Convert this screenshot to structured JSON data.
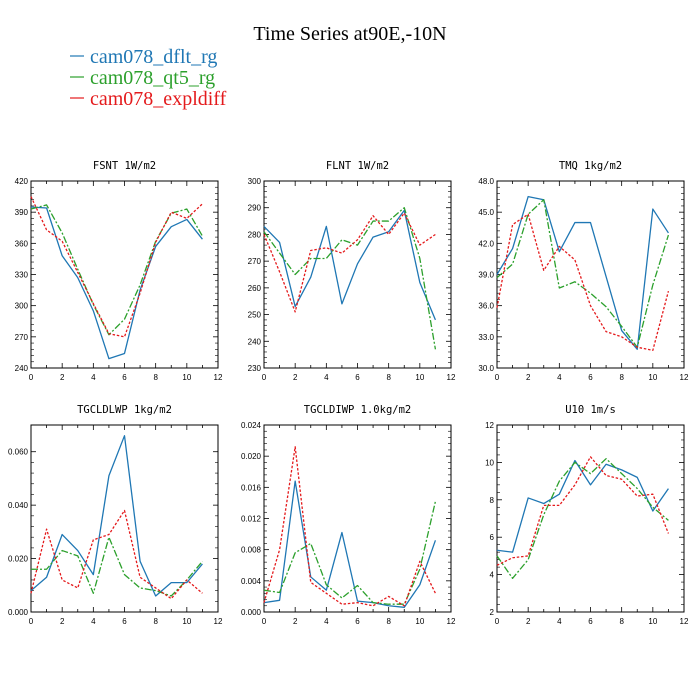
{
  "figure": {
    "title": "Time Series at90E,-10N"
  },
  "legend": {
    "entries": [
      {
        "name": "cam078_dflt_rg",
        "color": "#1f77b4",
        "style": "solid"
      },
      {
        "name": "cam078_qt5_rg",
        "color": "#2ca02c",
        "style": "dashdot"
      },
      {
        "name": "cam078_expldiff",
        "color": "#e41a1c",
        "style": "dotted"
      }
    ]
  },
  "chart_data": [
    {
      "type": "line",
      "title": "FSNT  1W/m2",
      "xlim": [
        0,
        12
      ],
      "ylim": [
        240,
        420
      ],
      "xticks": [
        0,
        2,
        4,
        6,
        8,
        10,
        12
      ],
      "yticks": [
        240,
        270,
        300,
        330,
        360,
        390,
        420
      ],
      "ytick_labels": [
        "240",
        "270",
        "300",
        "330",
        "360",
        "390",
        "420"
      ],
      "x": [
        0,
        1,
        2,
        3,
        4,
        5,
        6,
        7,
        8,
        9,
        10,
        11
      ],
      "series": [
        {
          "name": "cam078_dflt_rg",
          "values": [
            395,
            394,
            348,
            327,
            295,
            249,
            254,
            315,
            357,
            376,
            383,
            364
          ]
        },
        {
          "name": "cam078_qt5_rg",
          "values": [
            393,
            397,
            370,
            335,
            301,
            272,
            287,
            320,
            362,
            389,
            393,
            367
          ]
        },
        {
          "name": "cam078_expldiff",
          "values": [
            405,
            373,
            362,
            332,
            302,
            273,
            270,
            312,
            361,
            390,
            384,
            398
          ]
        }
      ]
    },
    {
      "type": "line",
      "title": "FLNT  1W/m2",
      "xlim": [
        0,
        12
      ],
      "ylim": [
        230,
        300
      ],
      "xticks": [
        0,
        2,
        4,
        6,
        8,
        10,
        12
      ],
      "yticks": [
        230,
        240,
        250,
        260,
        270,
        280,
        290,
        300
      ],
      "ytick_labels": [
        "230",
        "240",
        "250",
        "260",
        "270",
        "280",
        "290",
        "300"
      ],
      "x": [
        0,
        1,
        2,
        3,
        4,
        5,
        6,
        7,
        8,
        9,
        10,
        11
      ],
      "series": [
        {
          "name": "cam078_dflt_rg",
          "values": [
            283,
            277,
            253,
            264,
            283,
            254,
            269,
            279,
            281,
            289,
            262,
            248
          ]
        },
        {
          "name": "cam078_qt5_rg",
          "values": [
            281,
            273,
            265,
            271,
            271,
            278,
            276,
            285,
            285,
            290,
            271,
            237
          ]
        },
        {
          "name": "cam078_expldiff",
          "values": [
            280,
            266,
            251,
            274,
            275,
            273,
            278,
            287,
            280,
            288,
            276,
            280
          ]
        }
      ]
    },
    {
      "type": "line",
      "title": "TMQ  1kg/m2",
      "xlim": [
        0,
        12
      ],
      "ylim": [
        30,
        48
      ],
      "xticks": [
        0,
        2,
        4,
        6,
        8,
        10,
        12
      ],
      "yticks": [
        30,
        33,
        36,
        39,
        42,
        45,
        48
      ],
      "ytick_labels": [
        "30.0",
        "33.0",
        "36.0",
        "39.0",
        "42.0",
        "45.0",
        "48.0"
      ],
      "x": [
        0,
        1,
        2,
        3,
        4,
        5,
        6,
        7,
        8,
        9,
        10,
        11
      ],
      "series": [
        {
          "name": "cam078_dflt_rg",
          "values": [
            39.0,
            41.5,
            46.5,
            46.2,
            41.2,
            44.0,
            44.0,
            38.8,
            33.6,
            31.8,
            45.3,
            43.0
          ]
        },
        {
          "name": "cam078_qt5_rg",
          "values": [
            38.7,
            40.0,
            44.8,
            46.2,
            37.7,
            38.3,
            37.2,
            35.9,
            34.0,
            32.0,
            38.0,
            42.8
          ]
        },
        {
          "name": "cam078_expldiff",
          "values": [
            35.8,
            43.8,
            44.8,
            39.4,
            41.7,
            40.4,
            36.0,
            33.5,
            33.0,
            32.0,
            31.7,
            37.4
          ]
        }
      ]
    },
    {
      "type": "line",
      "title": "TGCLDLWP  1kg/m2",
      "xlim": [
        0,
        12
      ],
      "ylim": [
        0,
        0.07
      ],
      "xticks": [
        0,
        2,
        4,
        6,
        8,
        10,
        12
      ],
      "yticks": [
        0,
        0.02,
        0.04,
        0.06
      ],
      "ytick_labels": [
        "0.000",
        "0.020",
        "0.040",
        "0.060"
      ],
      "x": [
        0,
        1,
        2,
        3,
        4,
        5,
        6,
        7,
        8,
        9,
        10,
        11
      ],
      "series": [
        {
          "name": "cam078_dflt_rg",
          "values": [
            0.008,
            0.013,
            0.029,
            0.023,
            0.014,
            0.051,
            0.066,
            0.019,
            0.006,
            0.011,
            0.011,
            0.018
          ]
        },
        {
          "name": "cam078_qt5_rg",
          "values": [
            0.016,
            0.016,
            0.023,
            0.021,
            0.007,
            0.028,
            0.014,
            0.009,
            0.008,
            0.006,
            0.012,
            0.019
          ]
        },
        {
          "name": "cam078_expldiff",
          "values": [
            0.007,
            0.031,
            0.012,
            0.009,
            0.027,
            0.029,
            0.038,
            0.013,
            0.009,
            0.005,
            0.012,
            0.007
          ]
        }
      ]
    },
    {
      "type": "line",
      "title": "TGCLDIWP  1.0kg/m2",
      "xlim": [
        0,
        12
      ],
      "ylim": [
        0,
        0.024
      ],
      "xticks": [
        0,
        2,
        4,
        6,
        8,
        10,
        12
      ],
      "yticks": [
        0,
        0.004,
        0.008,
        0.012,
        0.016,
        0.02,
        0.024
      ],
      "ytick_labels": [
        "0.000",
        "0.004",
        "0.008",
        "0.012",
        "0.016",
        "0.020",
        "0.024"
      ],
      "x": [
        0,
        1,
        2,
        3,
        4,
        5,
        6,
        7,
        8,
        9,
        10,
        11
      ],
      "series": [
        {
          "name": "cam078_dflt_rg",
          "values": [
            0.0012,
            0.0015,
            0.0168,
            0.0045,
            0.0028,
            0.0102,
            0.0014,
            0.0012,
            0.0008,
            0.0006,
            0.0035,
            0.0092
          ]
        },
        {
          "name": "cam078_qt5_rg",
          "values": [
            0.0028,
            0.0025,
            0.0076,
            0.0088,
            0.0035,
            0.0018,
            0.0034,
            0.0012,
            0.001,
            0.001,
            0.0055,
            0.0142
          ]
        },
        {
          "name": "cam078_expldiff",
          "values": [
            0.0012,
            0.008,
            0.0212,
            0.0038,
            0.0024,
            0.001,
            0.0012,
            0.0008,
            0.002,
            0.0008,
            0.0065,
            0.0024
          ]
        }
      ]
    },
    {
      "type": "line",
      "title": "U10  1m/s",
      "xlim": [
        0,
        12
      ],
      "ylim": [
        2,
        12
      ],
      "xticks": [
        0,
        2,
        4,
        6,
        8,
        10,
        12
      ],
      "yticks": [
        2,
        4,
        6,
        8,
        10,
        12
      ],
      "ytick_labels": [
        "2",
        "4",
        "6",
        "8",
        "10",
        "12"
      ],
      "x": [
        0,
        1,
        2,
        3,
        4,
        5,
        6,
        7,
        8,
        9,
        10,
        11
      ],
      "series": [
        {
          "name": "cam078_dflt_rg",
          "values": [
            5.3,
            5.2,
            8.1,
            7.8,
            8.3,
            10.1,
            8.8,
            9.9,
            9.6,
            9.2,
            7.4,
            8.6
          ]
        },
        {
          "name": "cam078_qt5_rg",
          "values": [
            5.0,
            3.8,
            4.8,
            7.2,
            9.0,
            10.0,
            9.4,
            10.2,
            9.4,
            8.6,
            7.6,
            6.9
          ]
        },
        {
          "name": "cam078_expldiff",
          "values": [
            4.5,
            4.9,
            5.0,
            7.7,
            7.7,
            8.8,
            10.3,
            9.3,
            9.1,
            8.2,
            8.3,
            6.2
          ]
        }
      ]
    }
  ]
}
